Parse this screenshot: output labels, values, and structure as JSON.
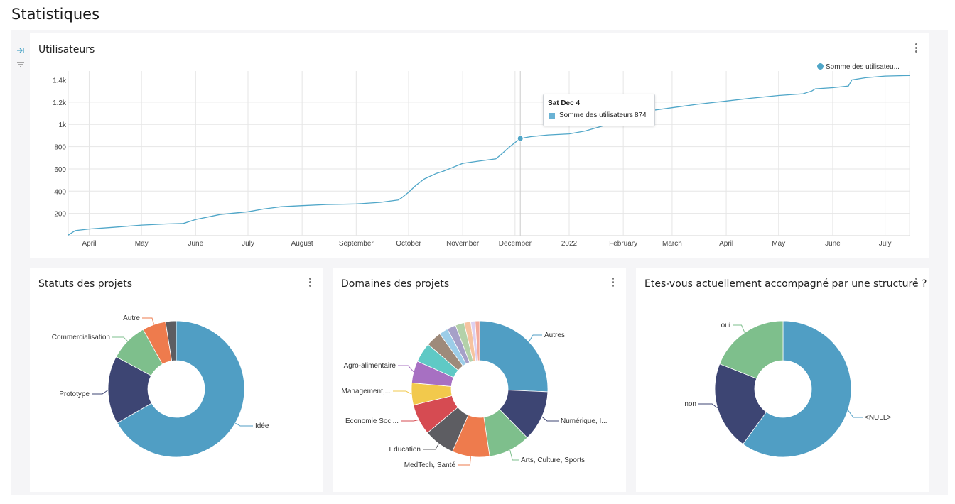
{
  "page": {
    "title": "Statistiques"
  },
  "colors": {
    "line": "#4fa6c8",
    "grid": "#e6e6e6",
    "axis": "#555555",
    "background": "#f5f5f7"
  },
  "sidebar_tools": [
    {
      "icon": "collapse-arrow-icon"
    },
    {
      "icon": "filter-icon"
    }
  ],
  "line_card": {
    "title": "Utilisateurs",
    "legend": "Somme des utilisateu...",
    "tooltip": {
      "date": "Sat Dec 4",
      "series": "Somme des utilisateurs",
      "value": "874"
    },
    "chart_data": {
      "type": "line",
      "title": "Utilisateurs",
      "xlabel": "",
      "ylabel": "",
      "x_range": [
        "2021-03-20",
        "2022-07-15"
      ],
      "ylim": [
        0,
        1480
      ],
      "y_ticks": [
        200,
        400,
        600,
        800,
        1000,
        1200,
        1400
      ],
      "y_tick_labels": [
        "200",
        "400",
        "600",
        "800",
        "1k",
        "1.2k",
        "1.4k"
      ],
      "x_ticks": [
        "2021-04-01",
        "2021-05-01",
        "2021-06-01",
        "2021-07-01",
        "2021-08-01",
        "2021-09-01",
        "2021-10-01",
        "2021-11-01",
        "2021-12-01",
        "2022-01-01",
        "2022-02-01",
        "2022-03-01",
        "2022-04-01",
        "2022-05-01",
        "2022-06-01",
        "2022-07-01"
      ],
      "x_tick_labels": [
        "April",
        "May",
        "June",
        "July",
        "August",
        "September",
        "October",
        "November",
        "December",
        "2022",
        "February",
        "March",
        "April",
        "May",
        "June",
        "July"
      ],
      "grid": true,
      "legend_position": "top-right",
      "series": [
        {
          "name": "Somme des utilisateu...",
          "x": [
            "2021-03-20",
            "2021-03-24",
            "2021-04-01",
            "2021-04-15",
            "2021-05-01",
            "2021-05-15",
            "2021-05-25",
            "2021-06-01",
            "2021-06-15",
            "2021-07-01",
            "2021-07-10",
            "2021-07-20",
            "2021-08-01",
            "2021-08-15",
            "2021-09-01",
            "2021-09-15",
            "2021-09-25",
            "2021-09-27",
            "2021-10-01",
            "2021-10-05",
            "2021-10-10",
            "2021-10-17",
            "2021-10-21",
            "2021-11-01",
            "2021-11-10",
            "2021-11-20",
            "2021-11-23",
            "2021-11-28",
            "2021-12-04",
            "2021-12-10",
            "2021-12-20",
            "2022-01-01",
            "2022-01-10",
            "2022-01-20",
            "2022-02-01",
            "2022-02-15",
            "2022-03-01",
            "2022-03-15",
            "2022-04-01",
            "2022-04-15",
            "2022-05-01",
            "2022-05-15",
            "2022-05-20",
            "2022-05-22",
            "2022-06-01",
            "2022-06-10",
            "2022-06-12",
            "2022-06-20",
            "2022-07-01",
            "2022-07-15"
          ],
          "y": [
            5,
            45,
            60,
            75,
            95,
            105,
            110,
            145,
            190,
            215,
            240,
            260,
            270,
            280,
            285,
            300,
            320,
            340,
            390,
            450,
            510,
            560,
            580,
            650,
            670,
            690,
            730,
            800,
            874,
            890,
            905,
            915,
            940,
            985,
            1060,
            1120,
            1150,
            1180,
            1210,
            1235,
            1260,
            1275,
            1300,
            1320,
            1330,
            1345,
            1400,
            1420,
            1435,
            1440
          ]
        }
      ],
      "highlight": {
        "x": "2021-12-04",
        "y": 874
      }
    }
  },
  "donut_cards": [
    {
      "title": "Statuts des projets",
      "chart_data": {
        "type": "pie",
        "title": "Statuts des projets",
        "categories": [
          "Idée",
          "Prototype",
          "Commercialisation",
          "Autre",
          ""
        ],
        "values": [
          66,
          16,
          9,
          5.5,
          2.5
        ],
        "colors": [
          "#509ec4",
          "#3d4573",
          "#7ebf8c",
          "#ee7b4d",
          "#5d5d62"
        ]
      }
    },
    {
      "title": "Domaines des projets",
      "chart_data": {
        "type": "pie",
        "title": "Domaines des projets",
        "categories": [
          "Autres",
          "Numérique, I...",
          "Arts, Culture, Sports",
          "MedTech, Santé",
          "Education",
          "Economie Soci...",
          "Management,...",
          "Agro-alimentaire",
          "",
          "",
          "",
          "",
          "",
          "",
          "",
          ""
        ],
        "values": [
          24.5,
          11.5,
          9.5,
          8.5,
          7,
          7,
          5,
          5,
          4.5,
          3.5,
          2,
          2,
          2,
          1.5,
          1,
          1
        ],
        "colors": [
          "#509ec4",
          "#3d4573",
          "#7ebf8c",
          "#ee7b4d",
          "#5d5d62",
          "#d64b52",
          "#f2c94c",
          "#a770c2",
          "#5fc9c5",
          "#9e8a7a",
          "#9ccde8",
          "#a6a0c8",
          "#b3d1a9",
          "#f6c3a0",
          "#ddd0f0",
          "#f3a99c"
        ]
      }
    },
    {
      "title": "Etes-vous actuellement accompagné par une structure ?",
      "chart_data": {
        "type": "pie",
        "title": "Etes-vous actuellement accompagné par une structure ?",
        "categories": [
          "<NULL>",
          "non",
          "oui"
        ],
        "values": [
          60,
          21,
          19
        ],
        "colors": [
          "#509ec4",
          "#3d4573",
          "#7ebf8c"
        ]
      }
    }
  ]
}
